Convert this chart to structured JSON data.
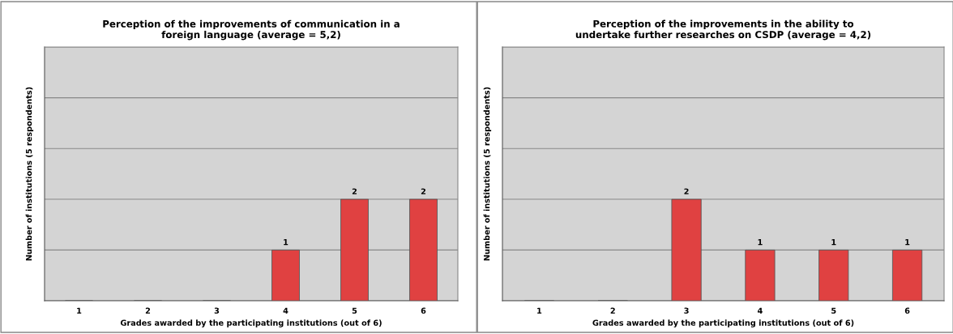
{
  "chart_data": [
    {
      "type": "bar",
      "title": "Perception of the improvements of communication in a\nforeign language (average = 5,2)",
      "xlabel": "Grades awarded by the participating institutions (out of 6)",
      "ylabel": "Number of institutions (5 respondents)",
      "categories": [
        "1",
        "2",
        "3",
        "4",
        "5",
        "6"
      ],
      "values": [
        0,
        0,
        0,
        1,
        2,
        2
      ],
      "value_labels": [
        null,
        null,
        null,
        "1",
        "2",
        "2"
      ],
      "color": "#e04141",
      "ylim": [
        0,
        5
      ],
      "yticks": [
        {
          "value": 0,
          "label": null
        },
        {
          "value": 1,
          "label": null
        },
        {
          "value": 2,
          "label": null
        },
        {
          "value": 3,
          "label": null
        },
        {
          "value": 4,
          "label": null
        },
        {
          "value": 5,
          "label": null
        }
      ],
      "tick_labels": "x",
      "grid": "y"
    },
    {
      "type": "bar",
      "title": "Perception of the improvements in the ability to\nundertake further researches on CSDP (average = 4,2)",
      "xlabel": "Grades awarded by the participating institutions (out of 6)",
      "ylabel": "Number of institutions (5 respondents)",
      "categories": [
        "1",
        "2",
        "3",
        "4",
        "5",
        "6"
      ],
      "values": [
        0,
        0,
        2,
        1,
        1,
        1
      ],
      "value_labels": [
        null,
        null,
        "2",
        "1",
        "1",
        "1"
      ],
      "color": "#e04141",
      "ylim": [
        0,
        5
      ],
      "yticks": [
        {
          "value": 0,
          "label": null
        },
        {
          "value": 1,
          "label": null
        },
        {
          "value": 2,
          "label": null
        },
        {
          "value": 3,
          "label": null
        },
        {
          "value": 4,
          "label": null
        },
        {
          "value": 5,
          "label": null
        }
      ],
      "tick_labels": "x",
      "grid": "y"
    }
  ]
}
